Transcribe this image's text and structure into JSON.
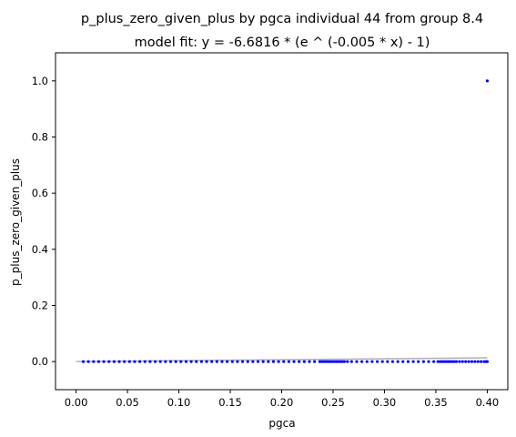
{
  "chart_data": {
    "type": "scatter",
    "title": "p_plus_zero_given_plus by pgca individual 44 from group 8.4",
    "subtitle": "model fit: y = -6.6816 * (e ^ (-0.005 * x) - 1)",
    "xlabel": "pgca",
    "ylabel": "p_plus_zero_given_plus",
    "xlim": [
      -0.02,
      0.42
    ],
    "ylim": [
      -0.1,
      1.1
    ],
    "xticks": [
      0.0,
      0.05,
      0.1,
      0.15,
      0.2,
      0.25,
      0.3,
      0.35,
      0.4
    ],
    "xtick_labels": [
      "0.00",
      "0.05",
      "0.10",
      "0.15",
      "0.20",
      "0.25",
      "0.30",
      "0.35",
      "0.40"
    ],
    "yticks": [
      0.0,
      0.2,
      0.4,
      0.6,
      0.8,
      1.0
    ],
    "ytick_labels": [
      "0.0",
      "0.2",
      "0.4",
      "0.6",
      "0.8",
      "1.0"
    ],
    "grid": false,
    "point_color": "#0000ff",
    "fit_color": "#b0b0b0",
    "points": [
      {
        "x": 0.007,
        "y": 0
      },
      {
        "x": 0.012,
        "y": 0
      },
      {
        "x": 0.017,
        "y": 0
      },
      {
        "x": 0.022,
        "y": 0
      },
      {
        "x": 0.027,
        "y": 0
      },
      {
        "x": 0.032,
        "y": 0
      },
      {
        "x": 0.037,
        "y": 0
      },
      {
        "x": 0.042,
        "y": 0
      },
      {
        "x": 0.047,
        "y": 0
      },
      {
        "x": 0.052,
        "y": 0
      },
      {
        "x": 0.057,
        "y": 0
      },
      {
        "x": 0.062,
        "y": 0
      },
      {
        "x": 0.067,
        "y": 0
      },
      {
        "x": 0.072,
        "y": 0
      },
      {
        "x": 0.077,
        "y": 0
      },
      {
        "x": 0.082,
        "y": 0
      },
      {
        "x": 0.087,
        "y": 0
      },
      {
        "x": 0.092,
        "y": 0
      },
      {
        "x": 0.097,
        "y": 0
      },
      {
        "x": 0.102,
        "y": 0
      },
      {
        "x": 0.107,
        "y": 0
      },
      {
        "x": 0.112,
        "y": 0
      },
      {
        "x": 0.117,
        "y": 0
      },
      {
        "x": 0.122,
        "y": 0
      },
      {
        "x": 0.127,
        "y": 0
      },
      {
        "x": 0.132,
        "y": 0
      },
      {
        "x": 0.137,
        "y": 0
      },
      {
        "x": 0.142,
        "y": 0
      },
      {
        "x": 0.147,
        "y": 0
      },
      {
        "x": 0.152,
        "y": 0
      },
      {
        "x": 0.157,
        "y": 0
      },
      {
        "x": 0.162,
        "y": 0
      },
      {
        "x": 0.167,
        "y": 0
      },
      {
        "x": 0.172,
        "y": 0
      },
      {
        "x": 0.177,
        "y": 0
      },
      {
        "x": 0.182,
        "y": 0
      },
      {
        "x": 0.187,
        "y": 0
      },
      {
        "x": 0.192,
        "y": 0
      },
      {
        "x": 0.197,
        "y": 0
      },
      {
        "x": 0.202,
        "y": 0
      },
      {
        "x": 0.207,
        "y": 0
      },
      {
        "x": 0.212,
        "y": 0
      },
      {
        "x": 0.217,
        "y": 0
      },
      {
        "x": 0.222,
        "y": 0
      },
      {
        "x": 0.227,
        "y": 0
      },
      {
        "x": 0.232,
        "y": 0
      },
      {
        "x": 0.237,
        "y": 0
      },
      {
        "x": 0.239,
        "y": 0
      },
      {
        "x": 0.241,
        "y": 0
      },
      {
        "x": 0.243,
        "y": 0
      },
      {
        "x": 0.245,
        "y": 0
      },
      {
        "x": 0.247,
        "y": 0
      },
      {
        "x": 0.249,
        "y": 0
      },
      {
        "x": 0.251,
        "y": 0
      },
      {
        "x": 0.253,
        "y": 0
      },
      {
        "x": 0.255,
        "y": 0
      },
      {
        "x": 0.257,
        "y": 0
      },
      {
        "x": 0.259,
        "y": 0
      },
      {
        "x": 0.261,
        "y": 0
      },
      {
        "x": 0.264,
        "y": 0
      },
      {
        "x": 0.268,
        "y": 0
      },
      {
        "x": 0.273,
        "y": 0
      },
      {
        "x": 0.278,
        "y": 0
      },
      {
        "x": 0.283,
        "y": 0
      },
      {
        "x": 0.288,
        "y": 0
      },
      {
        "x": 0.293,
        "y": 0
      },
      {
        "x": 0.298,
        "y": 0
      },
      {
        "x": 0.303,
        "y": 0
      },
      {
        "x": 0.308,
        "y": 0
      },
      {
        "x": 0.313,
        "y": 0
      },
      {
        "x": 0.318,
        "y": 0
      },
      {
        "x": 0.323,
        "y": 0
      },
      {
        "x": 0.328,
        "y": 0
      },
      {
        "x": 0.333,
        "y": 0
      },
      {
        "x": 0.338,
        "y": 0
      },
      {
        "x": 0.343,
        "y": 0
      },
      {
        "x": 0.348,
        "y": 0
      },
      {
        "x": 0.352,
        "y": 0
      },
      {
        "x": 0.354,
        "y": 0
      },
      {
        "x": 0.356,
        "y": 0
      },
      {
        "x": 0.358,
        "y": 0
      },
      {
        "x": 0.36,
        "y": 0
      },
      {
        "x": 0.362,
        "y": 0
      },
      {
        "x": 0.364,
        "y": 0
      },
      {
        "x": 0.366,
        "y": 0
      },
      {
        "x": 0.368,
        "y": 0
      },
      {
        "x": 0.37,
        "y": 0
      },
      {
        "x": 0.373,
        "y": 0
      },
      {
        "x": 0.376,
        "y": 0
      },
      {
        "x": 0.379,
        "y": 0
      },
      {
        "x": 0.382,
        "y": 0
      },
      {
        "x": 0.385,
        "y": 0
      },
      {
        "x": 0.388,
        "y": 0
      },
      {
        "x": 0.391,
        "y": 0
      },
      {
        "x": 0.394,
        "y": 0
      },
      {
        "x": 0.397,
        "y": 0
      },
      {
        "x": 0.399,
        "y": 0
      },
      {
        "x": 0.4,
        "y": 0
      },
      {
        "x": 0.4,
        "y": 1.0
      }
    ],
    "fit": {
      "a": -6.6816,
      "b": -0.005,
      "x_range": [
        0.0,
        0.4
      ]
    }
  }
}
